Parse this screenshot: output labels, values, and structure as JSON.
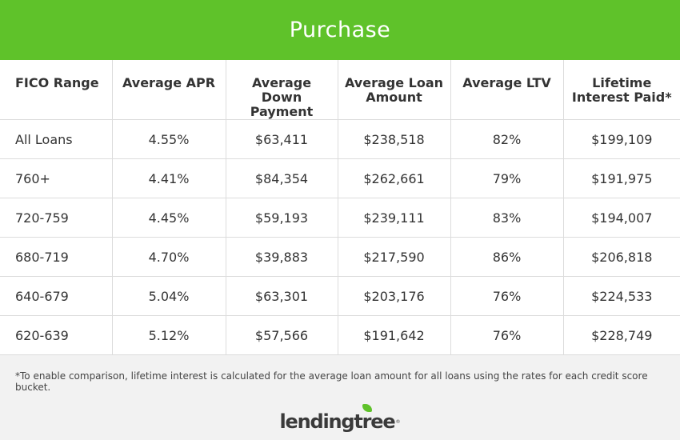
{
  "header": {
    "title": "Purchase"
  },
  "table": {
    "columns": [
      "FICO Range",
      "Average APR",
      "Average Down Payment",
      "Average Loan Amount",
      "Average LTV",
      "Lifetime Interest Paid*"
    ],
    "rows": [
      [
        "All Loans",
        "4.55%",
        "$63,411",
        "$238,518",
        "82%",
        "$199,109"
      ],
      [
        "760+",
        "4.41%",
        "$84,354",
        "$262,661",
        "79%",
        "$191,975"
      ],
      [
        "720-759",
        "4.45%",
        "$59,193",
        "$239,111",
        "83%",
        "$194,007"
      ],
      [
        "680-719",
        "4.70%",
        "$39,883",
        "$217,590",
        "86%",
        "$206,818"
      ],
      [
        "640-679",
        "5.04%",
        "$63,301",
        "$203,176",
        "76%",
        "$224,533"
      ],
      [
        "620-639",
        "5.12%",
        "$57,566",
        "$191,642",
        "76%",
        "$228,749"
      ]
    ]
  },
  "footnote": "*To enable comparison, lifetime interest is calculated for the average loan amount for all loans using the rates for each credit score bucket.",
  "logo": {
    "text": "lendingtree",
    "mark": "®"
  },
  "colors": {
    "brand_green": "#5fc22a",
    "text": "#333333",
    "background": "#f2f2f2",
    "grid": "#dcdcdc"
  }
}
